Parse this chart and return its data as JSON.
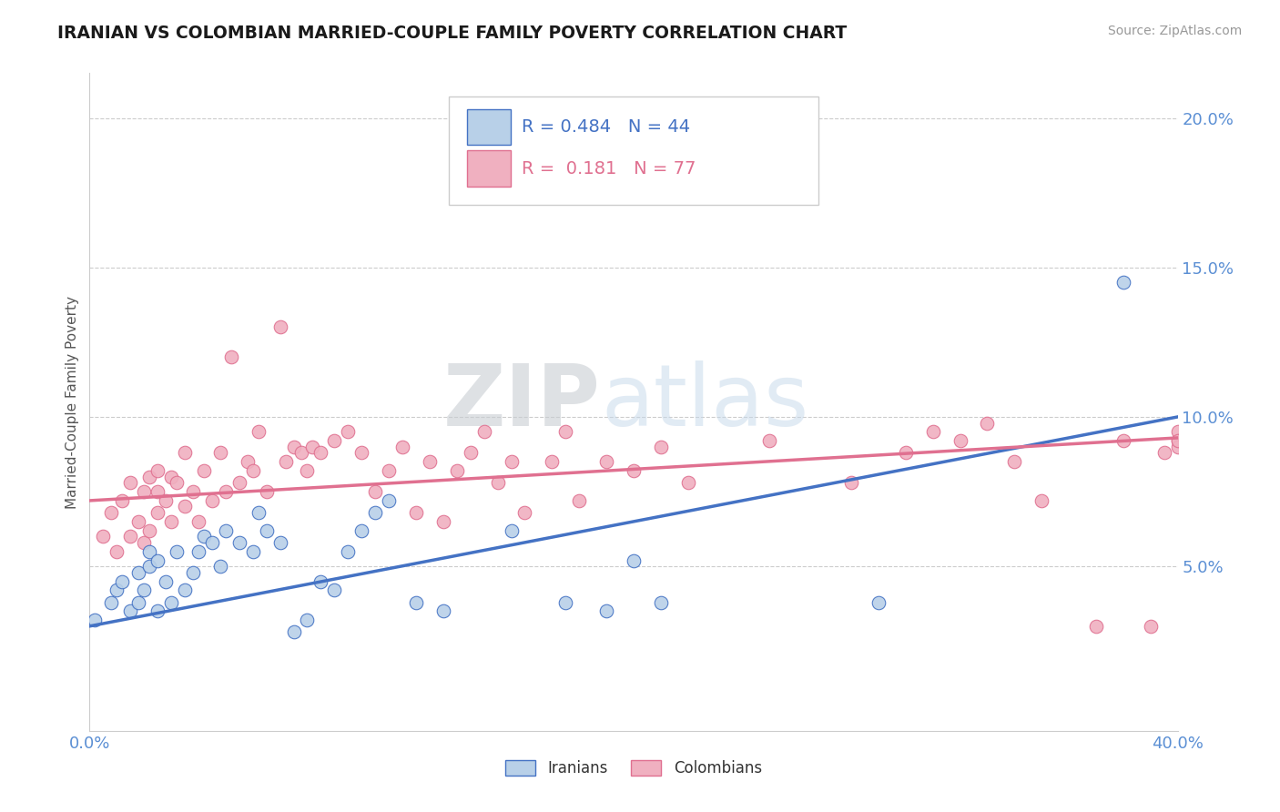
{
  "title": "IRANIAN VS COLOMBIAN MARRIED-COUPLE FAMILY POVERTY CORRELATION CHART",
  "source": "Source: ZipAtlas.com",
  "ylabel": "Married-Couple Family Poverty",
  "xlim": [
    0.0,
    0.4
  ],
  "ylim": [
    -0.005,
    0.215
  ],
  "ytick_positions": [
    0.05,
    0.1,
    0.15,
    0.2
  ],
  "ytick_labels": [
    "5.0%",
    "10.0%",
    "15.0%",
    "20.0%"
  ],
  "watermark_zip": "ZIP",
  "watermark_atlas": "atlas",
  "legend_line1": "R = 0.484   N = 44",
  "legend_line2": "R =  0.181   N = 77",
  "iranian_fill": "#b8d0e8",
  "iranian_edge": "#4472c4",
  "colombian_fill": "#f0b0c0",
  "colombian_edge": "#e07090",
  "iranian_line_color": "#4472c4",
  "colombian_line_color": "#e07090",
  "background_color": "#ffffff",
  "grid_color": "#cccccc",
  "iranians_x": [
    0.002,
    0.008,
    0.01,
    0.012,
    0.015,
    0.018,
    0.018,
    0.02,
    0.022,
    0.022,
    0.025,
    0.025,
    0.028,
    0.03,
    0.032,
    0.035,
    0.038,
    0.04,
    0.042,
    0.045,
    0.048,
    0.05,
    0.055,
    0.06,
    0.062,
    0.065,
    0.07,
    0.075,
    0.08,
    0.085,
    0.09,
    0.095,
    0.1,
    0.105,
    0.11,
    0.12,
    0.13,
    0.155,
    0.175,
    0.19,
    0.2,
    0.21,
    0.29,
    0.38
  ],
  "iranians_y": [
    0.032,
    0.038,
    0.042,
    0.045,
    0.035,
    0.038,
    0.048,
    0.042,
    0.05,
    0.055,
    0.035,
    0.052,
    0.045,
    0.038,
    0.055,
    0.042,
    0.048,
    0.055,
    0.06,
    0.058,
    0.05,
    0.062,
    0.058,
    0.055,
    0.068,
    0.062,
    0.058,
    0.028,
    0.032,
    0.045,
    0.042,
    0.055,
    0.062,
    0.068,
    0.072,
    0.038,
    0.035,
    0.062,
    0.038,
    0.035,
    0.052,
    0.038,
    0.038,
    0.145
  ],
  "colombians_x": [
    0.005,
    0.008,
    0.01,
    0.012,
    0.015,
    0.015,
    0.018,
    0.02,
    0.02,
    0.022,
    0.022,
    0.025,
    0.025,
    0.025,
    0.028,
    0.03,
    0.03,
    0.032,
    0.035,
    0.035,
    0.038,
    0.04,
    0.042,
    0.045,
    0.048,
    0.05,
    0.052,
    0.055,
    0.058,
    0.06,
    0.062,
    0.065,
    0.07,
    0.072,
    0.075,
    0.078,
    0.08,
    0.082,
    0.085,
    0.09,
    0.095,
    0.1,
    0.105,
    0.11,
    0.115,
    0.12,
    0.125,
    0.13,
    0.135,
    0.14,
    0.145,
    0.15,
    0.155,
    0.16,
    0.17,
    0.175,
    0.18,
    0.19,
    0.2,
    0.21,
    0.22,
    0.25,
    0.28,
    0.3,
    0.31,
    0.32,
    0.33,
    0.34,
    0.35,
    0.37,
    0.38,
    0.39,
    0.395,
    0.4,
    0.4,
    0.4,
    0.4
  ],
  "colombians_y": [
    0.06,
    0.068,
    0.055,
    0.072,
    0.06,
    0.078,
    0.065,
    0.058,
    0.075,
    0.062,
    0.08,
    0.068,
    0.075,
    0.082,
    0.072,
    0.065,
    0.08,
    0.078,
    0.07,
    0.088,
    0.075,
    0.065,
    0.082,
    0.072,
    0.088,
    0.075,
    0.12,
    0.078,
    0.085,
    0.082,
    0.095,
    0.075,
    0.13,
    0.085,
    0.09,
    0.088,
    0.082,
    0.09,
    0.088,
    0.092,
    0.095,
    0.088,
    0.075,
    0.082,
    0.09,
    0.068,
    0.085,
    0.065,
    0.082,
    0.088,
    0.095,
    0.078,
    0.085,
    0.068,
    0.085,
    0.095,
    0.072,
    0.085,
    0.082,
    0.09,
    0.078,
    0.092,
    0.078,
    0.088,
    0.095,
    0.092,
    0.098,
    0.085,
    0.072,
    0.03,
    0.092,
    0.03,
    0.088,
    0.092,
    0.09,
    0.095,
    0.092
  ],
  "iran_trendline": [
    0.03,
    0.1
  ],
  "col_trendline": [
    0.072,
    0.093
  ]
}
